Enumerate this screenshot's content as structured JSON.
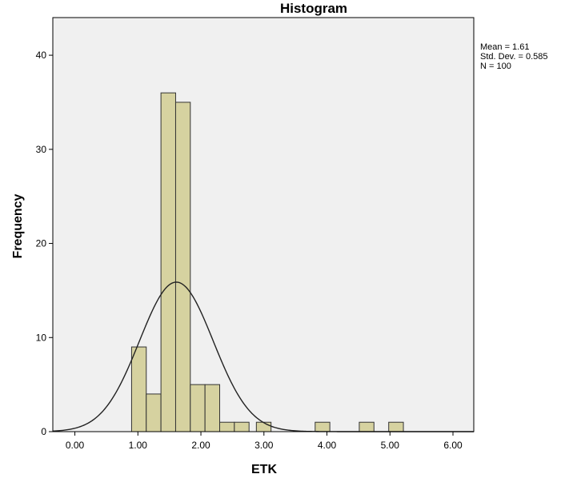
{
  "chart_data": {
    "type": "bar",
    "title": "Histogram",
    "xlabel": "ETK",
    "ylabel": "Frequency",
    "xlim": [
      -0.35,
      6.33
    ],
    "ylim": [
      0,
      44
    ],
    "x_ticks": [
      0,
      1,
      2,
      3,
      4,
      5,
      6
    ],
    "x_tick_labels": [
      "0.00",
      "1.00",
      "2.00",
      "3.00",
      "4.00",
      "5.00",
      "6.00"
    ],
    "y_ticks": [
      0,
      10,
      20,
      30,
      40
    ],
    "y_tick_labels": [
      "0",
      "10",
      "20",
      "30",
      "40"
    ],
    "bin_width": 0.233,
    "bins": [
      {
        "start": 0.9,
        "count": 9
      },
      {
        "start": 1.133,
        "count": 4
      },
      {
        "start": 1.366,
        "count": 36
      },
      {
        "start": 1.599,
        "count": 35
      },
      {
        "start": 1.832,
        "count": 5
      },
      {
        "start": 2.065,
        "count": 5
      },
      {
        "start": 2.298,
        "count": 1
      },
      {
        "start": 2.531,
        "count": 1
      },
      {
        "start": 2.88,
        "count": 1
      },
      {
        "start": 3.813,
        "count": 1
      },
      {
        "start": 4.513,
        "count": 1
      },
      {
        "start": 4.98,
        "count": 1
      }
    ],
    "normal_curve": {
      "mean": 1.61,
      "sd": 0.585,
      "n": 100
    },
    "stats": [
      "Mean = 1.61",
      "Std. Dev. = 0.585",
      "N = 100"
    ],
    "colors": {
      "bar_fill": "#d6d2a0",
      "bar_stroke": "#333333",
      "plot_bg": "#f0f0f0",
      "curve": "#222222"
    },
    "grid": false,
    "legend": "none"
  }
}
